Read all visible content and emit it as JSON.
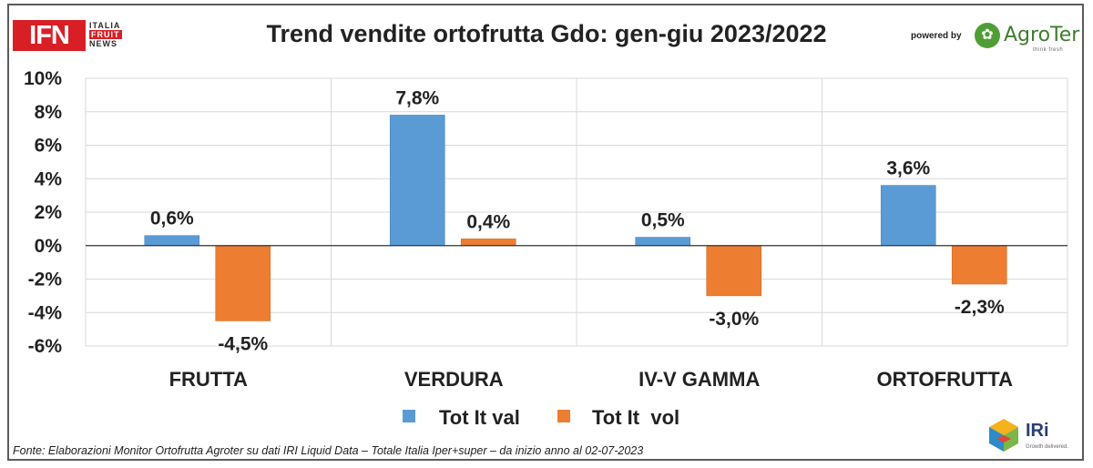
{
  "header": {
    "title": "Trend vendite ortofrutta Gdo: gen-giu 2023/2022",
    "ifn_logo": {
      "main": "IFN",
      "line1": "ITALIA",
      "line2": "FRUIT",
      "line3": "NEWS"
    },
    "powered_by": "powered by",
    "agroter_logo": {
      "name": "AgroTer",
      "tagline": "think fresh"
    }
  },
  "footer": {
    "source": "Fonte: Elaborazioni Monitor Ortofrutta Agroter su dati IRI Liquid Data – Totale Italia Iper+super –  da inizio anno al 02-07-2023",
    "iri_logo": {
      "name": "IRi",
      "tagline": "Growth delivered."
    }
  },
  "colors": {
    "series_val": "#5b9bd5",
    "series_vol": "#ed7d31",
    "ifn_red": "#d91f26",
    "agroter_green": "#4f9e35"
  },
  "chart_data": {
    "type": "bar",
    "title": "Trend vendite ortofrutta Gdo: gen-giu 2023/2022",
    "categories": [
      "FRUTTA",
      "VERDURA",
      "IV-V GAMMA",
      "ORTOFRUTTA"
    ],
    "series": [
      {
        "name": "Tot It val",
        "values": [
          0.6,
          7.8,
          0.5,
          3.6
        ],
        "labels": [
          "0,6%",
          "7,8%",
          "0,5%",
          "3,6%"
        ],
        "color": "#5b9bd5"
      },
      {
        "name": "Tot It  vol",
        "values": [
          -4.5,
          0.4,
          -3.0,
          -2.3
        ],
        "labels": [
          "-4,5%",
          "0,4%",
          "-3,0%",
          "-2,3%"
        ],
        "color": "#ed7d31"
      }
    ],
    "ylim": [
      -6,
      10
    ],
    "yticks": [
      10,
      8,
      6,
      4,
      2,
      0,
      -2,
      -4,
      -6
    ],
    "ytick_labels": [
      "10%",
      "8%",
      "6%",
      "4%",
      "2%",
      "0%",
      "-2%",
      "-4%",
      "-6%"
    ],
    "grid": true,
    "legend_position": "bottom-center"
  }
}
